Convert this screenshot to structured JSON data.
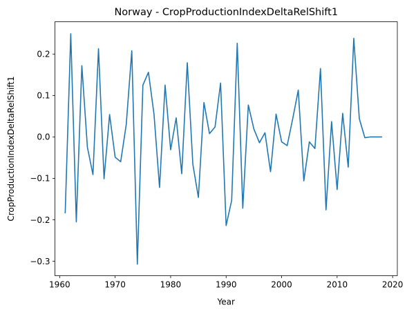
{
  "chart_data": {
    "type": "line",
    "title": "Norway - CropProductionIndexDeltaRelShift1",
    "xlabel": "Year",
    "ylabel": "CropProductionIndexDeltaRelShift1",
    "xlim": [
      1959.15,
      2020.85
    ],
    "ylim": [
      -0.335,
      0.278
    ],
    "xticks": [
      1960,
      1970,
      1980,
      1990,
      2000,
      2010,
      2020
    ],
    "yticks": [
      -0.3,
      -0.2,
      -0.1,
      0.0,
      0.1,
      0.2
    ],
    "ytick_labels": [
      "−0.3",
      "−0.2",
      "−0.1",
      "0.0",
      "0.1",
      "0.2"
    ],
    "grid": false,
    "line_color": "#1f77b4",
    "series": [
      {
        "x": [
          1961,
          1962,
          1963,
          1964,
          1965,
          1966,
          1967,
          1968,
          1969,
          1970,
          1971,
          1972,
          1973,
          1974,
          1975,
          1976,
          1977,
          1978,
          1979,
          1980,
          1981,
          1982,
          1983,
          1984,
          1985,
          1986,
          1987,
          1988,
          1989,
          1990,
          1991,
          1992,
          1993,
          1994,
          1995,
          1996,
          1997,
          1998,
          1999,
          2000,
          2001,
          2002,
          2003,
          2004,
          2005,
          2006,
          2007,
          2008,
          2009,
          2010,
          2011,
          2012,
          2013,
          2014,
          2015,
          2016,
          2017,
          2018
        ],
        "values": [
          -0.183,
          0.249,
          -0.205,
          0.172,
          -0.025,
          -0.091,
          0.213,
          -0.101,
          0.054,
          -0.049,
          -0.06,
          0.03,
          0.208,
          -0.307,
          0.125,
          0.156,
          0.055,
          -0.122,
          0.125,
          -0.031,
          0.046,
          -0.089,
          0.179,
          -0.066,
          -0.146,
          0.083,
          0.008,
          0.024,
          0.13,
          -0.214,
          -0.153,
          0.226,
          -0.172,
          0.077,
          0.019,
          -0.014,
          0.01,
          -0.084,
          0.055,
          -0.012,
          -0.021,
          0.044,
          0.113,
          -0.106,
          -0.012,
          -0.028,
          0.165,
          -0.176,
          0.037,
          -0.127,
          0.057,
          -0.073,
          0.238,
          0.044,
          -0.002,
          0.0,
          0.0,
          0.0
        ]
      }
    ]
  }
}
